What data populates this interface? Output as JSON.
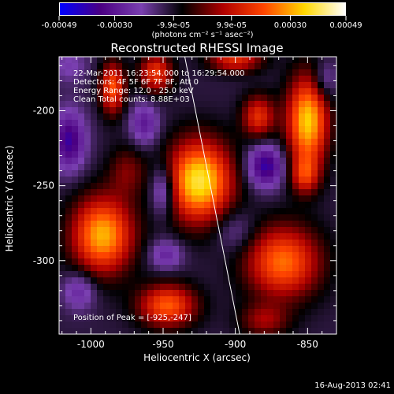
{
  "colorbar": {
    "tick_labels": [
      "-0.00049",
      "-0.00030",
      "-9.9e-05",
      "9.9e-05",
      "0.00030",
      "0.00049"
    ],
    "tick_values": [
      -0.00049,
      -0.0003,
      -9.9e-05,
      9.9e-05,
      0.0003,
      0.00049
    ],
    "range": [
      -0.00049,
      0.00049
    ],
    "unit_label": "(photons cm⁻² s⁻¹ asec⁻²)",
    "colors": [
      "#0000ff",
      "#4b0082",
      "#7a40b0",
      "#000000",
      "#b00000",
      "#ff4500",
      "#ffd700",
      "#ffffff"
    ]
  },
  "chart_data": {
    "type": "heatmap",
    "title": "Reconstructed RHESSI Image",
    "xlabel": "Heliocentric X (arcsec)",
    "ylabel": "Heliocentric Y (arcsec)",
    "xlim": [
      -1022,
      -830
    ],
    "ylim": [
      -349,
      -164
    ],
    "x_ticks": [
      -1000,
      -950,
      -900,
      -850
    ],
    "x_tick_labels": [
      "-1000",
      "-950",
      "-900",
      "-850"
    ],
    "y_ticks": [
      -200,
      -250,
      -300
    ],
    "y_tick_labels": [
      "-200",
      "-250",
      "-300"
    ],
    "annotations": [
      "22-Mar-2011 16:23:54.000 to 16:29:54.000",
      "Detectors: 4F 5F 6F 7F 8F, Att 0",
      "Energy Range: 12.0 - 25.0 keV",
      "Clean    Total counts: 8.88E+03"
    ],
    "peak_label": "Position of Peak = [-925,-247]",
    "peak": [
      -925,
      -247
    ],
    "limb_line": {
      "x": [
        -935,
        -897
      ],
      "y": [
        -164,
        -349
      ]
    },
    "sources": [
      {
        "x": -925,
        "y": -247,
        "peak": 0.00049,
        "sx": 16,
        "sy": 19
      },
      {
        "x": -992,
        "y": -283,
        "peak": 0.00042,
        "sx": 15,
        "sy": 18
      },
      {
        "x": -975,
        "y": -240,
        "peak": 0.00012,
        "sx": 9,
        "sy": 12
      },
      {
        "x": -985,
        "y": -185,
        "peak": 0.00032,
        "sx": 6,
        "sy": 12
      },
      {
        "x": -955,
        "y": -175,
        "peak": 0.00028,
        "sx": 8,
        "sy": 9
      },
      {
        "x": -947,
        "y": -330,
        "peak": 0.00033,
        "sx": 14,
        "sy": 10
      },
      {
        "x": -884,
        "y": -204,
        "peak": 0.00026,
        "sx": 8,
        "sy": 10
      },
      {
        "x": -850,
        "y": -207,
        "peak": 0.00045,
        "sx": 10,
        "sy": 21
      },
      {
        "x": -867,
        "y": -301,
        "peak": 0.00035,
        "sx": 18,
        "sy": 17
      },
      {
        "x": -852,
        "y": -243,
        "peak": 0.00022,
        "sx": 7,
        "sy": 9
      },
      {
        "x": -900,
        "y": -166,
        "peak": 0.00025,
        "sx": 13,
        "sy": 6
      },
      {
        "x": -880,
        "y": -340,
        "peak": 0.00015,
        "sx": 12,
        "sy": 8
      },
      {
        "x": -1015,
        "y": -220,
        "peak": -0.00028,
        "sx": 8,
        "sy": 14
      },
      {
        "x": -963,
        "y": -209,
        "peak": -0.0002,
        "sx": 7,
        "sy": 10
      },
      {
        "x": -950,
        "y": -253,
        "peak": -0.00024,
        "sx": 6,
        "sy": 12
      },
      {
        "x": -948,
        "y": -296,
        "peak": -0.00018,
        "sx": 8,
        "sy": 7
      },
      {
        "x": -879,
        "y": -237,
        "peak": -0.0003,
        "sx": 9,
        "sy": 10
      },
      {
        "x": -1008,
        "y": -320,
        "peak": -0.00018,
        "sx": 8,
        "sy": 9
      },
      {
        "x": -900,
        "y": -280,
        "peak": -0.00012,
        "sx": 10,
        "sy": 10
      },
      {
        "x": -1015,
        "y": -170,
        "peak": -0.00012,
        "sx": 9,
        "sy": 8
      },
      {
        "x": -838,
        "y": -180,
        "peak": -0.00015,
        "sx": 6,
        "sy": 9
      }
    ],
    "background_level": -0.00012
  },
  "footer": {
    "date": "16-Aug-2013 02:41"
  }
}
